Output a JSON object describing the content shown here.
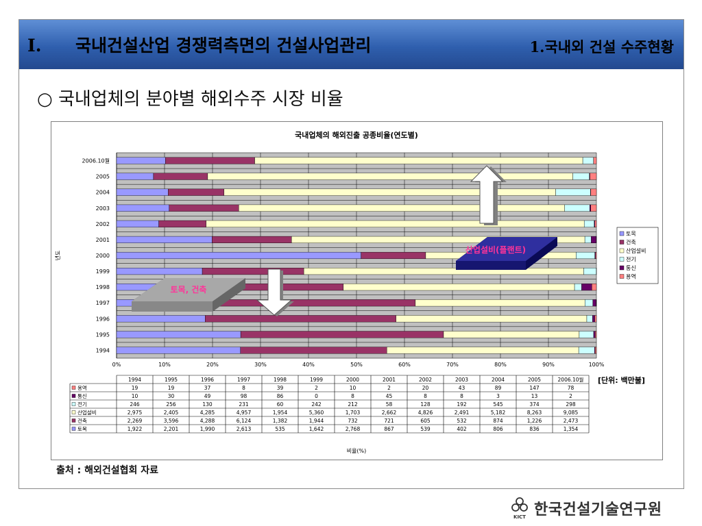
{
  "header": {
    "section_num": "I.",
    "title": "국내건설산업 경쟁력측면의 건설사업관리",
    "subtitle": "1.국내외 건설 수주현황"
  },
  "section_title": "○ 국내업체의 분야별 해외수주 시장 비율",
  "source": "출처 : 해외건설협회 자료",
  "logo": {
    "text": "한국건설기술연구원",
    "mark": "KICT"
  },
  "unit_label": "[단위: 백만불]",
  "colors": {
    "토목": "#9999ff",
    "건축": "#993366",
    "산업설비": "#ffffcc",
    "전기": "#ccffff",
    "통신": "#660066",
    "용역": "#ff8080"
  },
  "annotations": {
    "plant": "산업설비(플랜트)",
    "civil": "토목, 건축"
  },
  "chart_data": {
    "type": "bar",
    "orientation": "horizontal",
    "stacked": "percent",
    "title": "국내업체의 해외진출 공종비율(연도별)",
    "xlabel": "비율(%)",
    "ylabel": "년도",
    "xlim": [
      0,
      100
    ],
    "x_ticks": [
      "0%",
      "10%",
      "20%",
      "30%",
      "40%",
      "50%",
      "60%",
      "70%",
      "80%",
      "90%",
      "100%"
    ],
    "grid": true,
    "legend_position": "right",
    "categories": [
      "1994",
      "1995",
      "1996",
      "1997",
      "1998",
      "1999",
      "2000",
      "2001",
      "2002",
      "2003",
      "2004",
      "2005",
      "2006.10월"
    ],
    "series": [
      {
        "name": "토목",
        "values": [
          1922,
          2201,
          1990,
          2613,
          535,
          1642,
          2768,
          867,
          539,
          402,
          806,
          836,
          1354
        ]
      },
      {
        "name": "건축",
        "values": [
          2269,
          3596,
          4288,
          6124,
          1382,
          1944,
          732,
          721,
          605,
          532,
          874,
          1226,
          2473
        ]
      },
      {
        "name": "산업설비",
        "values": [
          2975,
          2405,
          4285,
          4957,
          1954,
          5360,
          1703,
          2662,
          4826,
          2491,
          5182,
          8263,
          9085
        ]
      },
      {
        "name": "전기",
        "values": [
          246,
          256,
          130,
          231,
          60,
          242,
          212,
          58,
          128,
          192,
          545,
          374,
          298
        ]
      },
      {
        "name": "통신",
        "values": [
          10,
          30,
          49,
          98,
          86,
          0,
          8,
          45,
          8,
          8,
          3,
          13,
          2
        ]
      },
      {
        "name": "용역",
        "values": [
          19,
          19,
          37,
          8,
          39,
          2,
          10,
          2,
          20,
          43,
          89,
          147,
          78
        ]
      }
    ],
    "table_row_order": [
      "용역",
      "통신",
      "전기",
      "산업설비",
      "건축",
      "토목"
    ],
    "table_values": {
      "용역": [
        "19",
        "19",
        "37",
        "8",
        "39",
        "2",
        "10",
        "2",
        "20",
        "43",
        "89",
        "147",
        "78"
      ],
      "통신": [
        "10",
        "30",
        "49",
        "98",
        "86",
        "0",
        "8",
        "45",
        "8",
        "8",
        "3",
        "13",
        "2"
      ],
      "전기": [
        "246",
        "256",
        "130",
        "231",
        "60",
        "242",
        "212",
        "58",
        "128",
        "192",
        "545",
        "374",
        "298"
      ],
      "산업설비": [
        "2,975",
        "2,405",
        "4,285",
        "4,957",
        "1,954",
        "5,360",
        "1,703",
        "2,662",
        "4,826",
        "2,491",
        "5,182",
        "8,263",
        "9,085"
      ],
      "건축": [
        "2,269",
        "3,596",
        "4,288",
        "6,124",
        "1,382",
        "1,944",
        "732",
        "721",
        "605",
        "532",
        "874",
        "1,226",
        "2,473"
      ],
      "토목": [
        "1,922",
        "2,201",
        "1,990",
        "2,613",
        "535",
        "1,642",
        "2,768",
        "867",
        "539",
        "402",
        "806",
        "836",
        "1,354"
      ]
    }
  }
}
